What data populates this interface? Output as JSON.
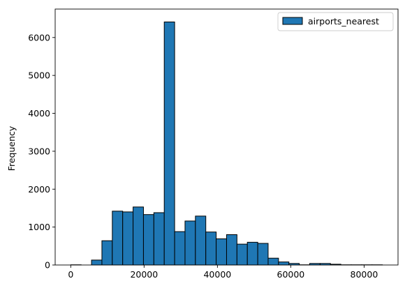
{
  "chart_data": {
    "type": "bar",
    "title": "",
    "xlabel": "",
    "ylabel": "Frequency",
    "xlim": [
      -4250,
      89250
    ],
    "ylim": [
      0,
      6750
    ],
    "xticks": [
      0,
      20000,
      40000,
      60000,
      80000
    ],
    "yticks": [
      0,
      1000,
      2000,
      3000,
      4000,
      5000,
      6000
    ],
    "xtick_labels": [
      "0",
      "20000",
      "40000",
      "60000",
      "80000"
    ],
    "ytick_labels": [
      "0",
      "1000",
      "2000",
      "3000",
      "4000",
      "5000",
      "6000"
    ],
    "legend_position": "top-right",
    "grid": false,
    "bar_color": "#1f77b4",
    "edge_color": "#000000",
    "series": [
      {
        "name": "airports_nearest",
        "bin_start": 0,
        "bin_width": 2833,
        "values": [
          5,
          0,
          130,
          640,
          1420,
          1400,
          1530,
          1330,
          1380,
          6410,
          880,
          1160,
          1290,
          870,
          690,
          800,
          550,
          600,
          570,
          180,
          80,
          40,
          5,
          40,
          40,
          20,
          5,
          5,
          5,
          5
        ]
      }
    ]
  }
}
